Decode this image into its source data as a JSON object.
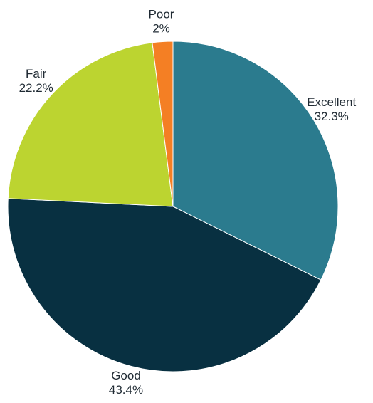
{
  "chart_data": {
    "type": "pie",
    "slices": [
      {
        "label": "Excellent",
        "value": 32.3,
        "value_label": "32.3%",
        "color": "#2b7b8e"
      },
      {
        "label": "Good",
        "value": 43.4,
        "value_label": "43.4%",
        "color": "#083041"
      },
      {
        "label": "Fair",
        "value": 22.2,
        "value_label": "22.2%",
        "color": "#bcd430"
      },
      {
        "label": "Poor",
        "value": 2,
        "value_label": "2%",
        "color": "#f47f24"
      }
    ],
    "start_angle": "12 o'clock",
    "direction": "clockwise",
    "legend": "none",
    "labels": "outside"
  }
}
